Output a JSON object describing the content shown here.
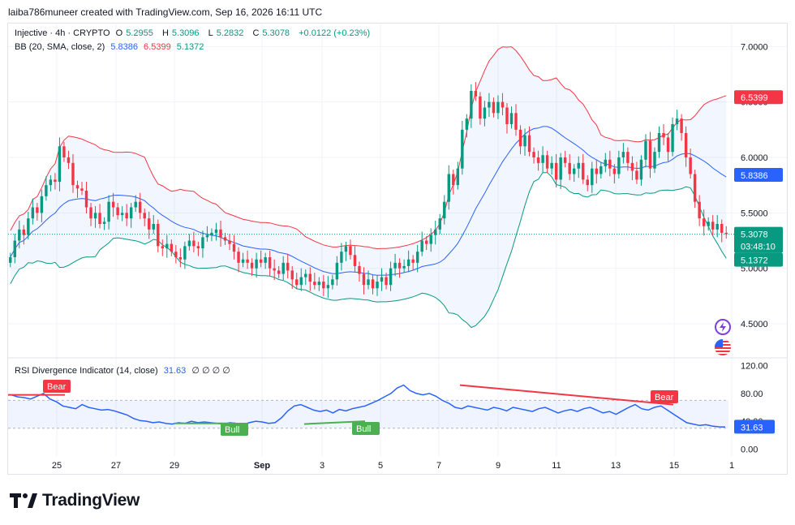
{
  "header": {
    "text": "laiba786muneer created with TradingView.com, Sep 16, 2026 16:11 UTC"
  },
  "legend": {
    "symbol": "Injective · 4h · CRYPTO",
    "o_label": "O",
    "o": "5.2955",
    "h_label": "H",
    "h": "5.3096",
    "l_label": "L",
    "l": "5.2832",
    "c_label": "C",
    "c": "5.3078",
    "change": "+0.0122 (+0.23%)",
    "bb_label": "BB (20, SMA, close, 2)",
    "bb_basis": "5.8386",
    "bb_upper": "6.5399",
    "bb_lower": "5.1372"
  },
  "rsi_legend": {
    "label": "RSI Divergence Indicator (14, close)",
    "value": "31.63",
    "extras": "∅ ∅ ∅ ∅"
  },
  "price_badges": {
    "upper": "6.5399",
    "basis": "5.8386",
    "close": "5.3078",
    "countdown": "03:48:10",
    "lower": "5.1372"
  },
  "rsi_badge": "31.63",
  "price_axis": [
    "7.0000",
    "6.5000",
    "6.0000",
    "5.5000",
    "5.0000",
    "4.5000"
  ],
  "rsi_axis": [
    "120.00",
    "80.00",
    "40.00",
    "0.00"
  ],
  "time_axis": [
    "25",
    "27",
    "29",
    "Sep",
    "3",
    "5",
    "7",
    "9",
    "11",
    "13",
    "15",
    "1"
  ],
  "labels": {
    "bear1": "Bear",
    "bear2": "Bear",
    "bull1": "Bull",
    "bull2": "Bull"
  },
  "footer": {
    "brand": "TradingView"
  },
  "colors": {
    "up": "#089981",
    "down": "#f23645",
    "basis": "#2962ff",
    "upper": "#f23645",
    "lower": "#089981",
    "rsi": "#2962ff"
  },
  "chart_data": [
    {
      "type": "candlestick",
      "title": "Injective · 4h · CRYPTO",
      "ylim": [
        4.2,
        7.2
      ],
      "x_ticks": [
        "25",
        "27",
        "29",
        "Sep",
        "3",
        "5",
        "7",
        "9",
        "11",
        "13",
        "15",
        "1"
      ],
      "close": [
        5.1,
        5.25,
        5.35,
        5.3,
        5.45,
        5.55,
        5.5,
        5.65,
        5.75,
        5.8,
        5.78,
        6.1,
        6.0,
        5.95,
        5.75,
        5.72,
        5.7,
        5.55,
        5.45,
        5.5,
        5.4,
        5.42,
        5.6,
        5.55,
        5.48,
        5.5,
        5.45,
        5.55,
        5.6,
        5.5,
        5.45,
        5.35,
        5.4,
        5.2,
        5.18,
        5.22,
        5.15,
        5.1,
        5.08,
        5.2,
        5.25,
        5.2,
        5.18,
        5.28,
        5.3,
        5.32,
        5.35,
        5.28,
        5.25,
        5.22,
        5.15,
        5.05,
        5.08,
        5.05,
        5.0,
        5.08,
        5.05,
        5.1,
        5.0,
        4.98,
        4.95,
        5.05,
        4.98,
        4.9,
        4.85,
        4.92,
        4.95,
        4.88,
        4.85,
        4.88,
        4.82,
        4.85,
        4.9,
        5.05,
        5.15,
        5.2,
        5.12,
        5.02,
        4.95,
        4.85,
        4.9,
        4.82,
        4.88,
        4.92,
        4.85,
        5.0,
        5.05,
        5.0,
        5.02,
        5.08,
        5.05,
        5.15,
        5.25,
        5.22,
        5.3,
        5.35,
        5.45,
        5.6,
        5.85,
        5.75,
        5.9,
        6.25,
        6.35,
        6.6,
        6.55,
        6.35,
        6.45,
        6.5,
        6.4,
        6.5,
        6.45,
        6.3,
        6.4,
        6.25,
        6.1,
        6.2,
        6.05,
        6.0,
        5.95,
        6.02,
        5.9,
        5.95,
        5.8,
        6.0,
        5.95,
        5.85,
        5.9,
        5.95,
        5.8,
        5.75,
        5.9,
        5.85,
        5.92,
        5.98,
        5.9,
        5.85,
        6.0,
        6.05,
        5.95,
        5.88,
        5.8,
        5.98,
        6.15,
        5.9,
        6.05,
        6.22,
        6.18,
        6.05,
        6.3,
        6.35,
        6.22,
        6.0,
        5.85,
        5.6,
        5.45,
        5.38,
        5.42,
        5.35,
        5.4,
        5.32,
        5.3078
      ]
    },
    {
      "type": "line",
      "title": "RSI Divergence Indicator (14, close)",
      "ylim": [
        -10,
        130
      ],
      "y_ticks": [
        120,
        80,
        40,
        0
      ],
      "rsi": [
        78,
        75,
        74,
        72,
        76,
        80,
        72,
        68,
        62,
        60,
        58,
        64,
        60,
        58,
        56,
        57,
        55,
        52,
        49,
        44,
        41,
        40,
        38,
        39,
        37,
        36,
        38,
        37,
        40,
        38,
        39,
        38,
        37,
        36,
        38,
        37,
        35,
        38,
        40,
        39,
        37,
        38,
        45,
        55,
        62,
        64,
        60,
        56,
        54,
        56,
        52,
        57,
        55,
        58,
        60,
        62,
        66,
        70,
        75,
        80,
        88,
        92,
        84,
        80,
        78,
        80,
        76,
        70,
        66,
        60,
        58,
        62,
        60,
        58,
        56,
        60,
        58,
        55,
        60,
        58,
        56,
        54,
        58,
        60,
        56,
        52,
        55,
        57,
        54,
        58,
        60,
        56,
        52,
        54,
        50,
        55,
        60,
        64,
        58,
        56,
        60,
        62,
        56,
        50,
        44,
        38,
        36,
        34,
        35,
        33,
        32,
        31.63
      ],
      "bands": [
        70,
        30
      ]
    }
  ]
}
